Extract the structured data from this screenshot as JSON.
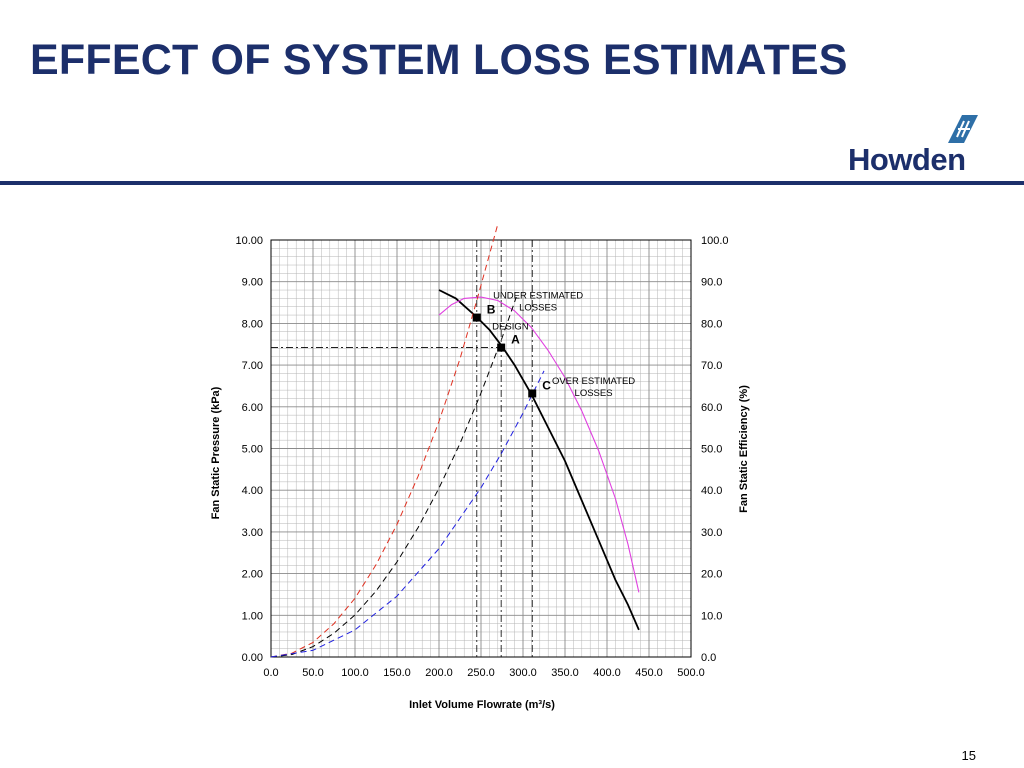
{
  "slide": {
    "title": "EFFECT OF SYSTEM LOSS ESTIMATES",
    "logo_text": "Howden",
    "page_number": "15"
  },
  "colors": {
    "brand": "#1c2f6b",
    "fan_curve": "#000000",
    "efficiency_curve": "#e040e0",
    "under_estimated_system": "#e03020",
    "design_system": "#000000",
    "over_estimated_system": "#2020e0"
  },
  "chart_data": {
    "type": "line",
    "xlabel": "Inlet Volume Flowrate (m³/s)",
    "ylabel": "Fan Static Pressure (kPa)",
    "y2label": "Fan Static Efficiency (%)",
    "xlim": [
      0,
      500
    ],
    "ylim": [
      0,
      10
    ],
    "y2lim": [
      0,
      100
    ],
    "x_ticks": [
      "0.0",
      "50.0",
      "100.0",
      "150.0",
      "200.0",
      "250.0",
      "300.0",
      "350.0",
      "400.0",
      "450.0",
      "500.0"
    ],
    "y_ticks": [
      "0.00",
      "1.00",
      "2.00",
      "3.00",
      "4.00",
      "5.00",
      "6.00",
      "7.00",
      "8.00",
      "9.00",
      "10.00"
    ],
    "y2_ticks": [
      "0.0",
      "10.0",
      "20.0",
      "30.0",
      "40.0",
      "50.0",
      "60.0",
      "70.0",
      "80.0",
      "90.0",
      "100.0"
    ],
    "grid": true,
    "series": [
      {
        "axis": "left",
        "style": "solid",
        "x": [
          200,
          220,
          245,
          260,
          275,
          290,
          310,
          330,
          350,
          370,
          390,
          410,
          425,
          438
        ],
        "y": [
          8.8,
          8.6,
          8.15,
          7.85,
          7.45,
          7.0,
          6.3,
          5.5,
          4.7,
          3.75,
          2.8,
          1.85,
          1.25,
          0.65
        ]
      },
      {
        "axis": "right",
        "style": "solid",
        "x": [
          200,
          215,
          230,
          250,
          270,
          290,
          310,
          330,
          350,
          370,
          390,
          410,
          425,
          438
        ],
        "y": [
          82,
          84.5,
          86,
          86.3,
          85.5,
          83,
          79,
          73.5,
          67,
          59,
          49.5,
          38,
          27,
          15.5
        ]
      },
      {
        "axis": "left",
        "style": "dashed",
        "x": [
          0,
          25,
          50,
          75,
          100,
          125,
          150,
          175,
          200,
          225,
          245,
          270
        ],
        "y": [
          0,
          0.09,
          0.35,
          0.8,
          1.41,
          2.21,
          3.18,
          4.33,
          5.65,
          7.15,
          8.55,
          10.38
        ]
      },
      {
        "axis": "left",
        "style": "dashed",
        "x": [
          0,
          25,
          50,
          75,
          100,
          125,
          150,
          175,
          200,
          225,
          250,
          275,
          292
        ],
        "y": [
          0,
          0.06,
          0.25,
          0.57,
          1.01,
          1.58,
          2.28,
          3.1,
          4.05,
          5.12,
          6.33,
          7.65,
          8.63
        ]
      },
      {
        "axis": "left",
        "style": "dashed",
        "x": [
          0,
          50,
          100,
          150,
          200,
          250,
          275,
          300,
          325
        ],
        "y": [
          0,
          0.16,
          0.65,
          1.46,
          2.6,
          4.06,
          4.91,
          5.85,
          6.86
        ]
      }
    ],
    "reference_lines": [
      {
        "type": "vertical",
        "x": 245,
        "y_to": 10
      },
      {
        "type": "vertical",
        "x": 274,
        "y_to": 10
      },
      {
        "type": "vertical",
        "x": 311,
        "y_to": 10
      },
      {
        "type": "horizontal",
        "y": 7.42,
        "x_to": 274
      }
    ],
    "points": [
      {
        "label": "B",
        "x": 245,
        "y": 8.14
      },
      {
        "label": "A",
        "x": 274,
        "y": 7.42
      },
      {
        "label": "C",
        "x": 311,
        "y": 6.32
      }
    ],
    "annotations": [
      {
        "lines": [
          "UNDER ESTIMATED",
          "LOSSES"
        ],
        "x": 318,
        "y": 8.6
      },
      {
        "lines": [
          "DESIGN"
        ],
        "x": 285,
        "y": 7.85
      },
      {
        "lines": [
          "OVER ESTIMATED",
          "LOSSES"
        ],
        "x": 384,
        "y": 6.55
      }
    ]
  }
}
